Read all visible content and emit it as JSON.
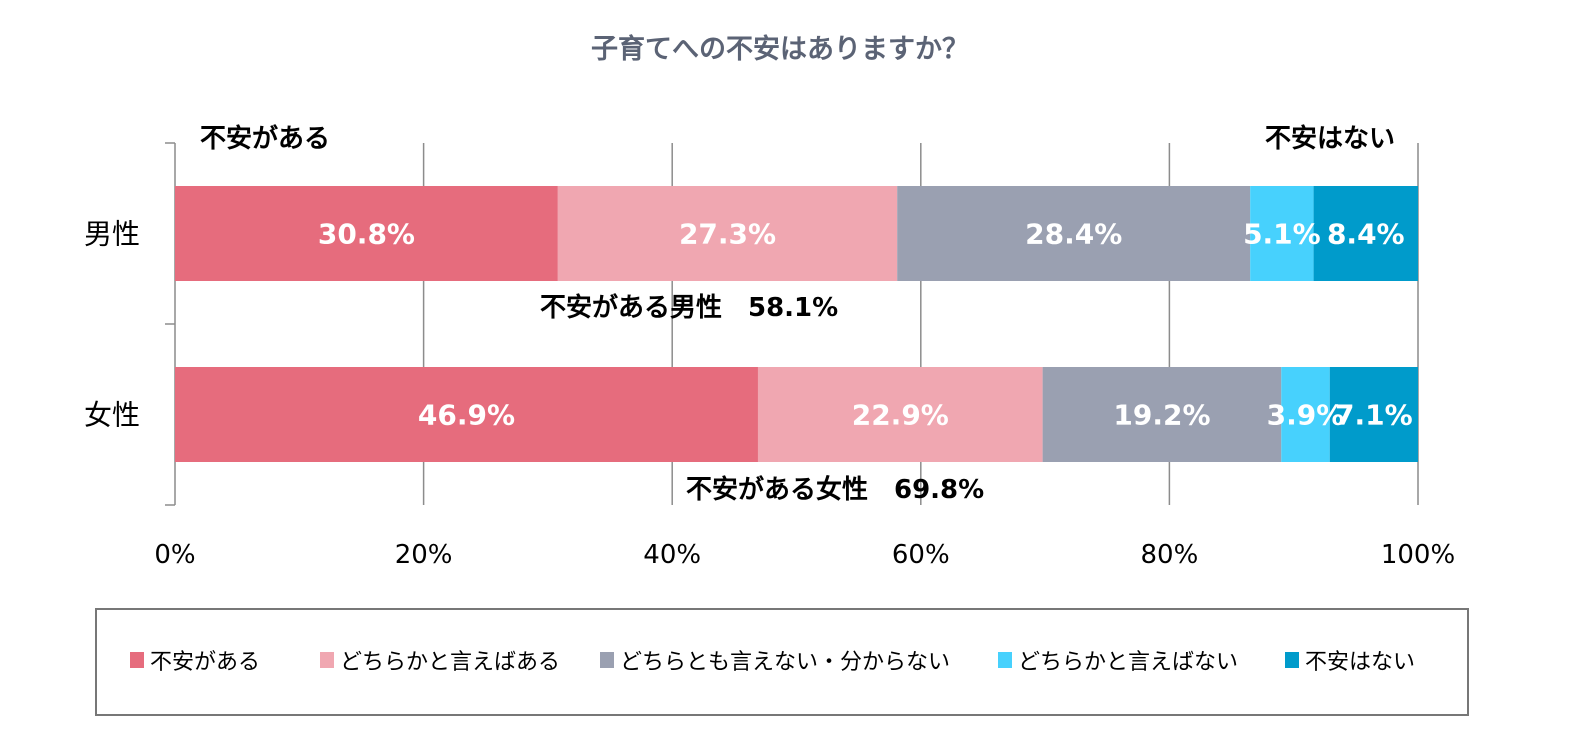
{
  "chart_data": {
    "type": "bar",
    "orientation": "horizontal",
    "stacked": true,
    "title": "子育てへの不安はありますか？",
    "categories": [
      "男性",
      "女性"
    ],
    "series": [
      {
        "name": "不安がある",
        "color": "#e66c7d",
        "values": [
          30.8,
          46.9
        ],
        "labels": [
          "30.8%",
          "46.9%"
        ]
      },
      {
        "name": "どちらかと言えばある",
        "color": "#f0a7b1",
        "values": [
          27.3,
          22.9
        ],
        "labels": [
          "27.3%",
          "22.9%"
        ]
      },
      {
        "name": "どちらとも言えない・分からない",
        "color": "#9aa0b1",
        "values": [
          28.4,
          19.2
        ],
        "labels": [
          "28.4%",
          "19.2%"
        ]
      },
      {
        "name": "どちらかと言えばない",
        "color": "#47d1fd",
        "values": [
          5.1,
          3.9
        ],
        "labels": [
          "5.1%",
          "3.9%"
        ]
      },
      {
        "name": "不安はない",
        "color": "#009bcb",
        "values": [
          8.4,
          7.1
        ],
        "labels": [
          "8.4%",
          "7.1%"
        ]
      }
    ],
    "xlim": [
      0,
      100
    ],
    "xticks": [
      "0%",
      "20%",
      "40%",
      "60%",
      "80%",
      "100%"
    ],
    "grid": true,
    "legend_position": "bottom",
    "annotations": {
      "left_header": "不安がある",
      "right_header": "不安はない",
      "male_total": "不安がある男性　58.1%",
      "female_total": "不安がある女性　69.8%"
    }
  }
}
